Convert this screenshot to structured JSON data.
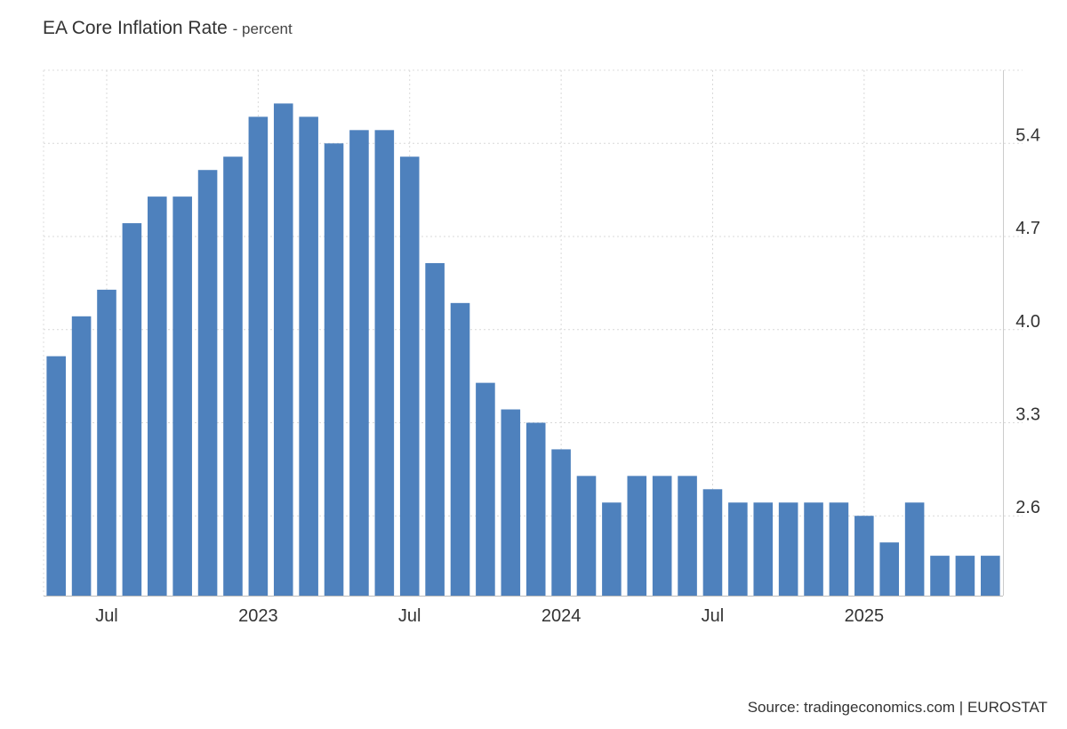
{
  "chart_data": {
    "type": "bar",
    "title": "EA Core Inflation Rate",
    "subtitle": "percent",
    "source": "Source: tradingeconomics.com | EUROSTAT",
    "x": [
      "2022-05",
      "2022-06",
      "2022-07",
      "2022-08",
      "2022-09",
      "2022-10",
      "2022-11",
      "2022-12",
      "2023-01",
      "2023-02",
      "2023-03",
      "2023-04",
      "2023-05",
      "2023-06",
      "2023-07",
      "2023-08",
      "2023-09",
      "2023-10",
      "2023-11",
      "2023-12",
      "2024-01",
      "2024-02",
      "2024-03",
      "2024-04",
      "2024-05",
      "2024-06",
      "2024-07",
      "2024-08",
      "2024-09",
      "2024-10",
      "2024-11",
      "2024-12",
      "2025-01",
      "2025-02",
      "2025-03",
      "2025-04",
      "2025-05",
      "2025-06"
    ],
    "values": [
      3.8,
      4.1,
      4.3,
      4.8,
      5.0,
      5.0,
      5.2,
      5.3,
      5.6,
      5.7,
      5.6,
      5.4,
      5.5,
      5.5,
      5.3,
      4.5,
      4.2,
      3.6,
      3.4,
      3.3,
      3.1,
      2.9,
      2.7,
      2.9,
      2.9,
      2.9,
      2.8,
      2.7,
      2.7,
      2.7,
      2.7,
      2.7,
      2.6,
      2.4,
      2.7,
      2.3,
      2.3,
      2.3
    ],
    "y_ticks": [
      "2.6",
      "3.3",
      "4.0",
      "4.7",
      "5.4"
    ],
    "x_tick_labels": [
      {
        "label": "Jul",
        "at": "2022-07"
      },
      {
        "label": "2023",
        "at": "2023-01"
      },
      {
        "label": "Jul",
        "at": "2023-07"
      },
      {
        "label": "2024",
        "at": "2024-01"
      },
      {
        "label": "Jul",
        "at": "2024-07"
      },
      {
        "label": "2025",
        "at": "2025-01"
      }
    ],
    "ylim": [
      2.0,
      5.95
    ],
    "y_axis_side": "right",
    "grid": true,
    "bar_color": "#4e81bd"
  }
}
